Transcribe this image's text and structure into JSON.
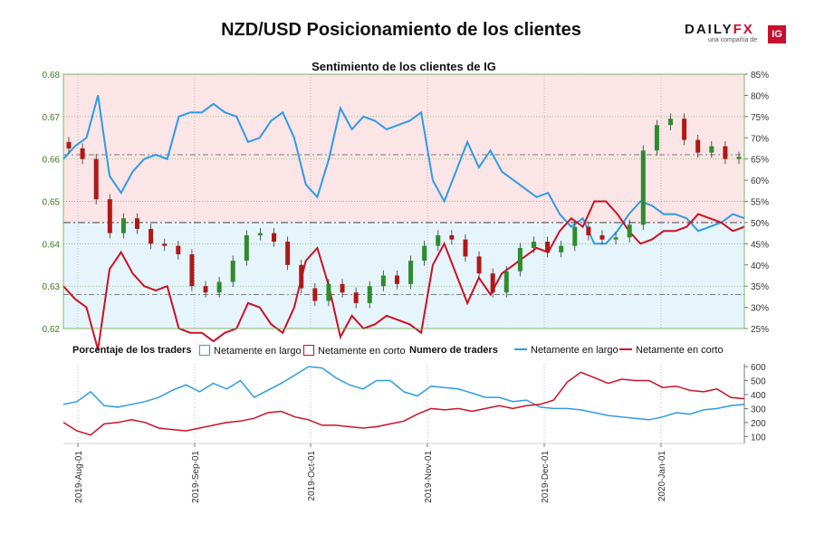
{
  "title": "NZD/USD Posicionamiento de los clientes",
  "logo": {
    "brand_a": "DAILY",
    "brand_b": "FX",
    "tagline": "una compañía de",
    "badge": "IG"
  },
  "colors": {
    "long": "#2e9be6",
    "short": "#cc1124",
    "long_fill": "#e6f4fb",
    "short_fill": "#fbe5e6",
    "up_candle": "#2e8b2e",
    "down_candle": "#b01818",
    "axis_green": "#3a7a1a"
  },
  "legend": {
    "pct_title": "Porcentaje de los traders",
    "pct_long": "Netamente en largo",
    "pct_short": "Netamente en corto",
    "num_title": "Numero de traders",
    "num_long": "Netamente en largo",
    "num_short": "Netamente en corto"
  },
  "chart_data": [
    {
      "type": "candlestick",
      "title": "Sentimiento de los clientes de IG",
      "x_tick_labels": [
        "2019-Aug-01",
        "2019-Sep-01",
        "2019-Oct-01",
        "2019-Nov-01",
        "2019-Dec-01",
        "2020-Jan-01"
      ],
      "y_left_label_ticks": [
        "0.68",
        "0.67",
        "0.66",
        "0.65",
        "0.64",
        "0.63",
        "0.62"
      ],
      "y_right_label_ticks": [
        "85%",
        "80%",
        "75%",
        "70%",
        "65%",
        "60%",
        "55%",
        "50%",
        "45%",
        "40%",
        "35%",
        "30%",
        "25%"
      ],
      "ylim_left": [
        0.62,
        0.68
      ],
      "ylim_right": [
        25,
        85
      ],
      "reference_lines": [
        0.645,
        0.628,
        0.661
      ],
      "price_close": [
        0.6625,
        0.66,
        0.6505,
        0.6425,
        0.646,
        0.6435,
        0.64,
        0.6395,
        0.6375,
        0.63,
        0.6285,
        0.631,
        0.636,
        0.642,
        0.6425,
        0.6405,
        0.635,
        0.6295,
        0.6265,
        0.6305,
        0.6285,
        0.626,
        0.63,
        0.6325,
        0.6305,
        0.636,
        0.6395,
        0.642,
        0.641,
        0.637,
        0.633,
        0.6285,
        0.6335,
        0.639,
        0.6405,
        0.638,
        0.6395,
        0.644,
        0.642,
        0.641,
        0.6415,
        0.6445,
        0.662,
        0.668,
        0.6695,
        0.6645,
        0.6615,
        0.663,
        0.66,
        0.6605
      ],
      "long_pct": [
        65,
        68,
        70,
        80,
        61,
        57,
        62,
        65,
        66,
        65,
        75,
        76,
        76,
        78,
        76,
        75,
        69,
        70,
        74,
        76,
        70,
        59,
        56,
        65,
        77,
        72,
        75,
        74,
        72,
        73,
        74,
        76,
        60,
        55,
        62,
        69,
        63,
        67,
        62,
        60,
        58,
        56,
        57,
        52,
        49,
        51,
        45,
        45,
        48,
        52,
        55,
        54,
        52,
        52,
        51,
        48,
        49,
        50,
        52,
        51
      ]
    },
    {
      "type": "line",
      "title": "Numero de traders",
      "x_tick_labels": [
        "2019-Aug-01",
        "2019-Sep-01",
        "2019-Oct-01",
        "2019-Nov-01",
        "2019-Dec-01",
        "2020-Jan-01"
      ],
      "y_tick_labels": [
        "600",
        "500",
        "400",
        "300",
        "200",
        "100"
      ],
      "ylim": [
        50,
        620
      ],
      "series": [
        {
          "name": "Netamente en largo",
          "values": [
            330,
            350,
            420,
            320,
            310,
            330,
            350,
            380,
            430,
            470,
            420,
            480,
            440,
            500,
            380,
            430,
            480,
            540,
            600,
            590,
            520,
            470,
            440,
            500,
            500,
            420,
            390,
            460,
            450,
            440,
            410,
            380,
            380,
            350,
            360,
            310,
            300,
            300,
            290,
            270,
            250,
            240,
            230,
            220,
            240,
            270,
            260,
            290,
            300,
            320,
            330
          ]
        },
        {
          "name": "Netamente en corto",
          "values": [
            200,
            140,
            110,
            190,
            200,
            220,
            200,
            160,
            150,
            140,
            160,
            180,
            200,
            210,
            230,
            270,
            280,
            240,
            220,
            180,
            180,
            170,
            160,
            170,
            190,
            210,
            260,
            300,
            290,
            300,
            280,
            300,
            320,
            300,
            320,
            330,
            360,
            490,
            560,
            520,
            480,
            510,
            500,
            500,
            450,
            460,
            430,
            420,
            440,
            380,
            370
          ]
        }
      ]
    }
  ]
}
